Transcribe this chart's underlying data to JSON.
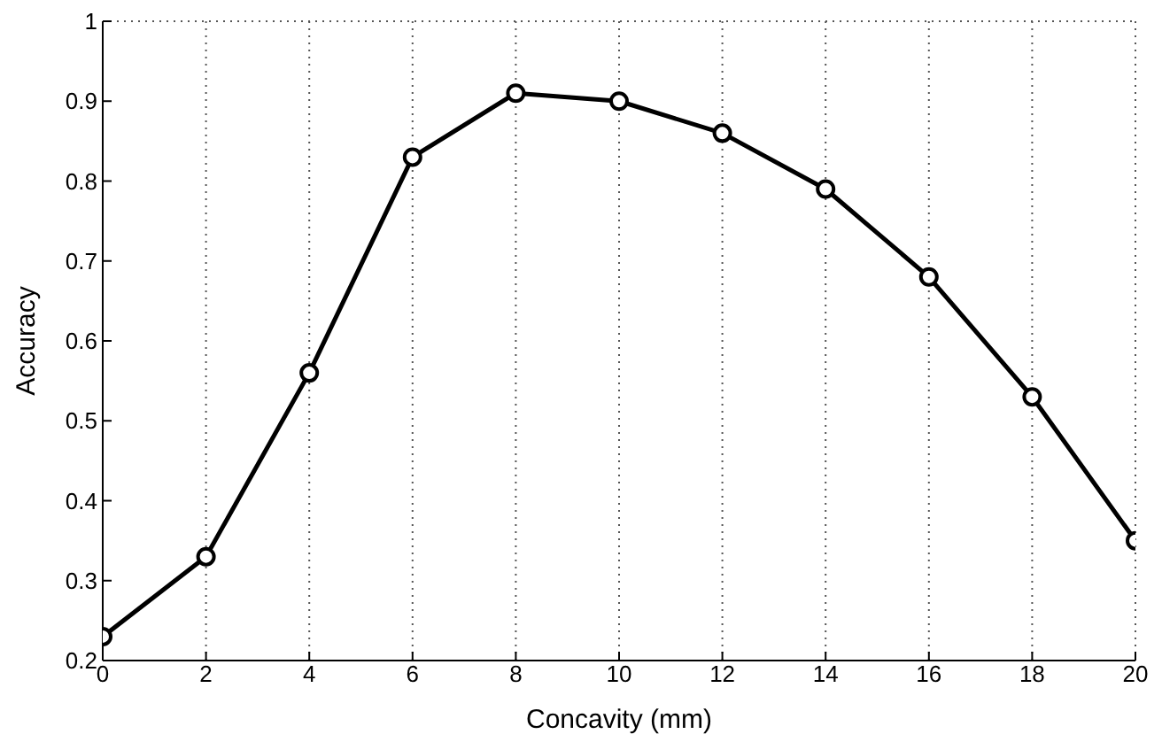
{
  "chart_data": {
    "type": "line",
    "xlabel": "Concavity (mm)",
    "ylabel": "Accuracy",
    "x": [
      0,
      2,
      4,
      6,
      8,
      10,
      12,
      14,
      16,
      18,
      20
    ],
    "series": [
      {
        "color": "#000000",
        "values": [
          0.23,
          0.33,
          0.56,
          0.83,
          0.91,
          0.9,
          0.86,
          0.79,
          0.68,
          0.53,
          0.35
        ]
      }
    ],
    "xlim": [
      0,
      20
    ],
    "xticks": [
      0,
      2,
      4,
      6,
      8,
      10,
      12,
      14,
      16,
      18,
      20
    ],
    "ylim": [
      0.2,
      1
    ],
    "yticks": [
      0.2,
      0.3,
      0.4,
      0.5,
      0.6,
      0.7,
      0.8,
      0.9,
      1
    ],
    "grid": true,
    "marker": "circle",
    "line_style": "solid",
    "legend": false
  }
}
